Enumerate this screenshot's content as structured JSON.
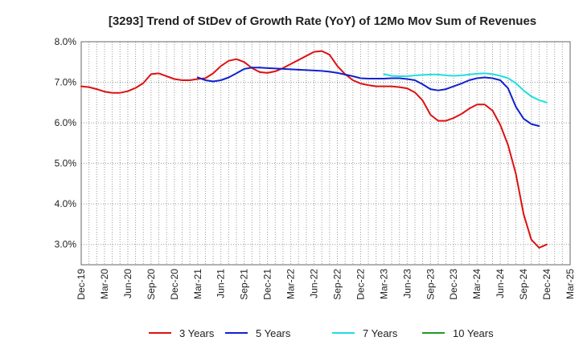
{
  "chart_data": {
    "type": "line",
    "title": "[3293]  Trend of StDev of Growth Rate (YoY) of 12Mo Mov Sum of Revenues",
    "xlabel": "",
    "ylabel": "",
    "ylim": [
      2.5,
      8.0
    ],
    "y_ticks": [
      3.0,
      4.0,
      5.0,
      6.0,
      7.0,
      8.0
    ],
    "y_tick_labels": [
      "3.0%",
      "4.0%",
      "5.0%",
      "6.0%",
      "7.0%",
      "8.0%"
    ],
    "x_tick_labels": [
      "Dec-19",
      "Mar-20",
      "Jun-20",
      "Sep-20",
      "Dec-20",
      "Mar-21",
      "Jun-21",
      "Sep-21",
      "Dec-21",
      "Mar-22",
      "Jun-22",
      "Sep-22",
      "Dec-22",
      "Mar-23",
      "Jun-23",
      "Sep-23",
      "Dec-23",
      "Mar-24",
      "Jun-24",
      "Sep-24",
      "Dec-24",
      "Mar-25"
    ],
    "grid": true,
    "legend_position": "bottom",
    "series": [
      {
        "name": "3 Years",
        "color": "#dd1111",
        "start_month_index": 0,
        "values": [
          6.9,
          6.88,
          6.83,
          6.77,
          6.74,
          6.74,
          6.78,
          6.86,
          6.98,
          7.2,
          7.22,
          7.15,
          7.08,
          7.05,
          7.05,
          7.08,
          7.1,
          7.22,
          7.4,
          7.53,
          7.57,
          7.5,
          7.35,
          7.25,
          7.23,
          7.27,
          7.35,
          7.45,
          7.55,
          7.65,
          7.75,
          7.77,
          7.68,
          7.4,
          7.2,
          7.05,
          6.97,
          6.93,
          6.9,
          6.9,
          6.9,
          6.88,
          6.85,
          6.75,
          6.55,
          6.2,
          6.05,
          6.05,
          6.12,
          6.22,
          6.35,
          6.45,
          6.45,
          6.3,
          5.95,
          5.45,
          4.75,
          3.75,
          3.12,
          2.92,
          3.0
        ]
      },
      {
        "name": "5 Years",
        "color": "#1122cc",
        "start_month_index": 15,
        "values": [
          7.12,
          7.05,
          7.02,
          7.05,
          7.12,
          7.22,
          7.33,
          7.36,
          7.36,
          7.35,
          7.34,
          7.33,
          7.32,
          7.31,
          7.3,
          7.29,
          7.28,
          7.26,
          7.23,
          7.19,
          7.15,
          7.1,
          7.09,
          7.09,
          7.09,
          7.1,
          7.1,
          7.08,
          7.05,
          6.95,
          6.83,
          6.8,
          6.83,
          6.9,
          6.97,
          7.05,
          7.1,
          7.12,
          7.1,
          7.05,
          6.85,
          6.4,
          6.1,
          5.97,
          5.92
        ]
      },
      {
        "name": "7 Years",
        "color": "#22dddd",
        "start_month_index": 39,
        "values": [
          7.2,
          7.16,
          7.15,
          7.15,
          7.17,
          7.18,
          7.19,
          7.19,
          7.17,
          7.16,
          7.17,
          7.19,
          7.21,
          7.22,
          7.2,
          7.16,
          7.1,
          6.98,
          6.8,
          6.65,
          6.56,
          6.5
        ]
      },
      {
        "name": "10 Years",
        "color": "#229922",
        "start_month_index": 0,
        "values": []
      }
    ]
  }
}
